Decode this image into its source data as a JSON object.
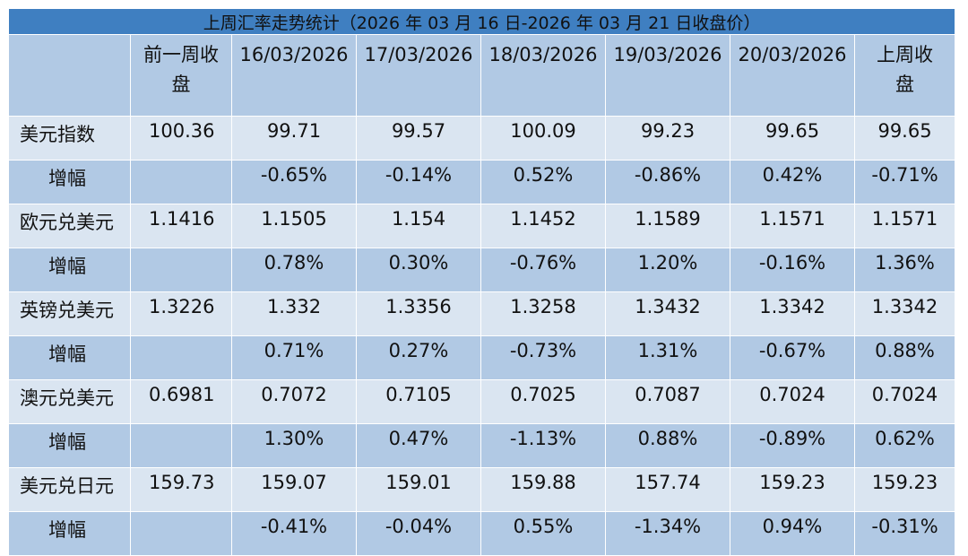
{
  "title": "上周汇率走势统计（2026 年 03 月 16 日-2026 年 03 月 21 日收盘价）",
  "headers": {
    "prev_close": "前一周收盘",
    "dates": [
      "16/03/2026",
      "17/03/2026",
      "18/03/2026",
      "19/03/2026",
      "20/03/2026"
    ],
    "last_close": "上周收盘"
  },
  "rows": [
    {
      "name": "美元指数",
      "prev": "100.36",
      "vals": [
        "99.71",
        "99.57",
        "100.09",
        "99.23",
        "99.65"
      ],
      "close": "99.65"
    },
    {
      "name": "增幅",
      "prev": "",
      "vals": [
        "-0.65%",
        "-0.14%",
        "0.52%",
        "-0.86%",
        "0.42%"
      ],
      "close": "-0.71%"
    },
    {
      "name": "欧元兑美元",
      "prev": "1.1416",
      "vals": [
        "1.1505",
        "1.154",
        "1.1452",
        "1.1589",
        "1.1571"
      ],
      "close": "1.1571"
    },
    {
      "name": "增幅",
      "prev": "",
      "vals": [
        "0.78%",
        "0.30%",
        "-0.76%",
        "1.20%",
        "-0.16%"
      ],
      "close": "1.36%"
    },
    {
      "name": "英镑兑美元",
      "prev": "1.3226",
      "vals": [
        "1.332",
        "1.3356",
        "1.3258",
        "1.3432",
        "1.3342"
      ],
      "close": "1.3342"
    },
    {
      "name": "增幅",
      "prev": "",
      "vals": [
        "0.71%",
        "0.27%",
        "-0.73%",
        "1.31%",
        "-0.67%"
      ],
      "close": "0.88%"
    },
    {
      "name": "澳元兑美元",
      "prev": "0.6981",
      "vals": [
        "0.7072",
        "0.7105",
        "0.7025",
        "0.7087",
        "0.7024"
      ],
      "close": "0.7024"
    },
    {
      "name": "增幅",
      "prev": "",
      "vals": [
        "1.30%",
        "0.47%",
        "-1.13%",
        "0.88%",
        "-0.89%"
      ],
      "close": "0.62%"
    },
    {
      "name": "美元兑日元",
      "prev": "159.73",
      "vals": [
        "159.07",
        "159.01",
        "159.88",
        "157.74",
        "159.23"
      ],
      "close": "159.23"
    },
    {
      "name": "增幅",
      "prev": "",
      "vals": [
        "-0.41%",
        "-0.04%",
        "0.55%",
        "-1.34%",
        "0.94%"
      ],
      "close": "-0.31%"
    }
  ]
}
